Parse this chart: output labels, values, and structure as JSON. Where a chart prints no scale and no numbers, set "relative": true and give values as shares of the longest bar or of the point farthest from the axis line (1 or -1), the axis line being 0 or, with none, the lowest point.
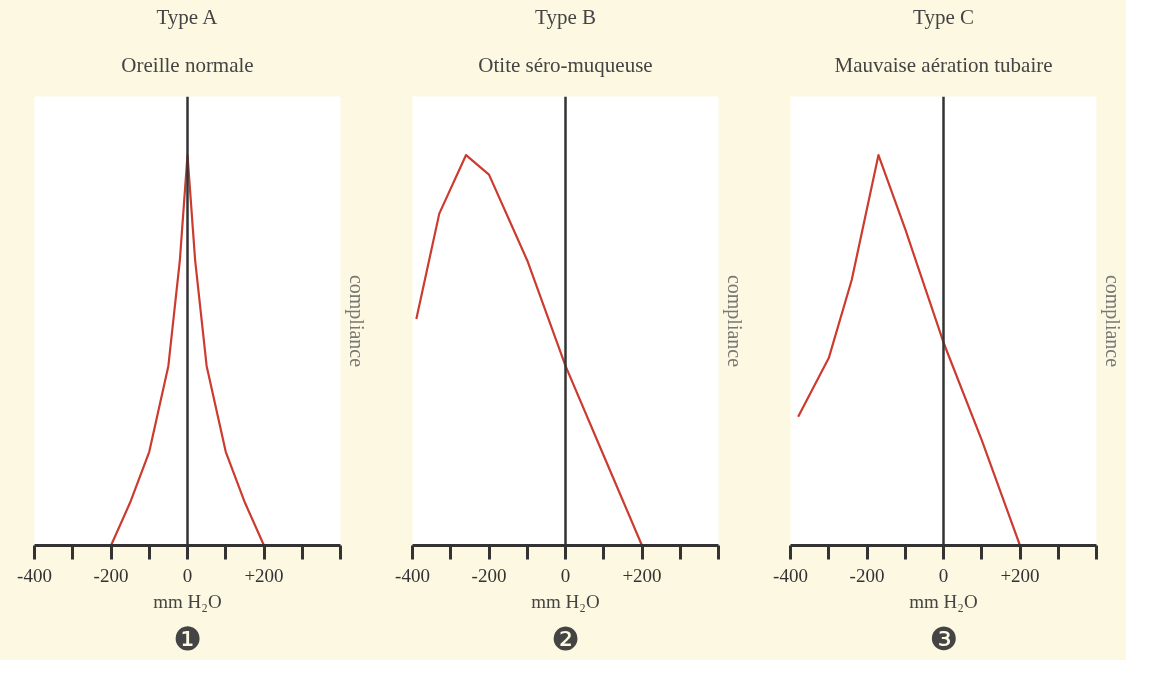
{
  "chart_data": [
    {
      "type": "line",
      "title": "Type A",
      "subtitle": "Oreille normale",
      "xlabel": "mm H₂O",
      "ylabel": "compliance",
      "relative": true,
      "tick_labels": "x",
      "x": [
        -200,
        -150,
        -100,
        -50,
        -20,
        0,
        20,
        50,
        100,
        150,
        200
      ],
      "series": [
        {
          "color": "#cc3b30",
          "values": [
            0,
            0.11,
            0.24,
            0.46,
            0.73,
            1,
            0.73,
            0.46,
            0.24,
            0.11,
            0
          ]
        }
      ],
      "xlim": [
        -400,
        400
      ],
      "xticks": [
        -400,
        {
          "value": -300,
          "label": null
        },
        -200,
        {
          "value": -100,
          "label": null
        },
        0,
        {
          "value": 100,
          "label": null
        },
        {
          "value": 200,
          "label": "+200"
        },
        {
          "value": 300,
          "label": null
        },
        {
          "value": 400,
          "label": null
        }
      ],
      "ref_lines": [
        {
          "axis": "x",
          "value": 0,
          "color": "#333333"
        }
      ],
      "annotations": [
        "❶"
      ]
    },
    {
      "type": "line",
      "title": "Type B",
      "subtitle": "Otite séro-muqueuse",
      "xlabel": "mm H₂O",
      "ylabel": "compliance",
      "relative": true,
      "tick_labels": "x",
      "x": [
        -390,
        -330,
        -260,
        -200,
        -100,
        0,
        100,
        200
      ],
      "series": [
        {
          "color": "#cc3b30",
          "values": [
            0.58,
            0.85,
            1,
            0.95,
            0.73,
            0.46,
            0.23,
            0
          ]
        }
      ],
      "xlim": [
        -400,
        400
      ],
      "xticks": [
        -400,
        {
          "value": -300,
          "label": null
        },
        -200,
        {
          "value": -100,
          "label": null
        },
        0,
        {
          "value": 100,
          "label": null
        },
        {
          "value": 200,
          "label": "+200"
        },
        {
          "value": 300,
          "label": null
        },
        {
          "value": 400,
          "label": null
        }
      ],
      "ref_lines": [
        {
          "axis": "x",
          "value": 0,
          "color": "#333333"
        }
      ],
      "annotations": [
        "❷"
      ]
    },
    {
      "type": "line",
      "title": "Type C",
      "subtitle": "Mauvaise aération tubaire",
      "xlabel": "mm H₂O",
      "ylabel": "compliance",
      "relative": true,
      "tick_labels": "x",
      "x": [
        -380,
        -300,
        -240,
        -170,
        -100,
        0,
        100,
        200
      ],
      "series": [
        {
          "color": "#cc3b30",
          "values": [
            0.33,
            0.48,
            0.68,
            1,
            0.81,
            0.52,
            0.27,
            0
          ]
        }
      ],
      "xlim": [
        -400,
        400
      ],
      "xticks": [
        -400,
        {
          "value": -300,
          "label": null
        },
        -200,
        {
          "value": -100,
          "label": null
        },
        0,
        {
          "value": 100,
          "label": null
        },
        {
          "value": 200,
          "label": "+200"
        },
        {
          "value": 300,
          "label": null
        },
        {
          "value": 400,
          "label": null
        }
      ],
      "ref_lines": [
        {
          "axis": "x",
          "value": 0,
          "color": "#333333"
        }
      ],
      "annotations": [
        "❸"
      ]
    }
  ]
}
